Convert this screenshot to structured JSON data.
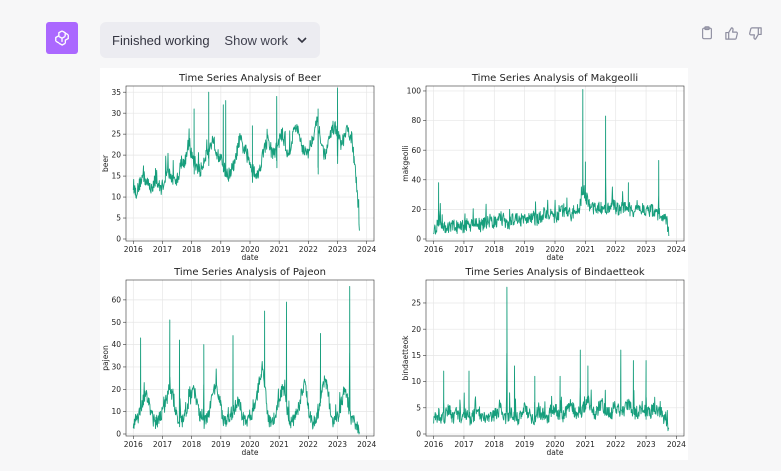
{
  "status": {
    "label": "Finished working",
    "toggle_label": "Show work"
  },
  "icons": {
    "avatar": "openai-logo-icon",
    "copy": "clipboard-icon",
    "thumbs_up": "thumbs-up-icon",
    "thumbs_down": "thumbs-down-icon",
    "chevron": "chevron-down-icon"
  },
  "colors": {
    "line": "#169e7c",
    "avatar_bg": "#ab68ff",
    "panel_bg": "#ececf1"
  },
  "chart_data": [
    {
      "type": "line",
      "title": "Time Series Analysis of Beer",
      "xlabel": "date",
      "ylabel": "beer",
      "xticks": [
        "2016",
        "2017",
        "2018",
        "2019",
        "2020",
        "2021",
        "2022",
        "2023",
        "2024"
      ],
      "yticks": [
        0,
        5,
        10,
        15,
        20,
        25,
        30,
        35
      ],
      "ylim": [
        0,
        36
      ],
      "grid": true,
      "x_start": "2016-01",
      "x_end": "2023-10",
      "approx_monthly": [
        13,
        11,
        12,
        14,
        15,
        14,
        13,
        12,
        13,
        14,
        13,
        12,
        13,
        15,
        16,
        15,
        14,
        13,
        15,
        17,
        18,
        19,
        22,
        21,
        19,
        18,
        17,
        16,
        18,
        20,
        21,
        22,
        24,
        22,
        20,
        19,
        18,
        16,
        15,
        16,
        17,
        18,
        22,
        24,
        22,
        21,
        19,
        18,
        17,
        16,
        15,
        17,
        20,
        22,
        23,
        22,
        20,
        21,
        22,
        24,
        25,
        23,
        20,
        21,
        24,
        27,
        26,
        24,
        22,
        21,
        20,
        22,
        24,
        26,
        28,
        25,
        22,
        20,
        21,
        24,
        26,
        27,
        25,
        24,
        22,
        24,
        26,
        25,
        24,
        18,
        12,
        2
      ],
      "spikes": [
        [
          "2018-02",
          31
        ],
        [
          "2018-08",
          35
        ],
        [
          "2019-02",
          32
        ],
        [
          "2019-03",
          33
        ],
        [
          "2020-02",
          27
        ],
        [
          "2020-12",
          34
        ],
        [
          "2022-05",
          31
        ],
        [
          "2023-01",
          36
        ]
      ]
    },
    {
      "type": "line",
      "title": "Time Series Analysis of Makgeolli",
      "xlabel": "date",
      "ylabel": "makgeolli",
      "xticks": [
        "2016",
        "2017",
        "2018",
        "2019",
        "2020",
        "2021",
        "2022",
        "2023",
        "2024"
      ],
      "yticks": [
        0,
        20,
        40,
        60,
        80,
        100
      ],
      "ylim": [
        0,
        102
      ],
      "grid": true,
      "x_start": "2016-01",
      "x_end": "2023-10",
      "approx_monthly": [
        7,
        8,
        12,
        10,
        9,
        8,
        7,
        8,
        9,
        8,
        7,
        8,
        9,
        10,
        9,
        11,
        12,
        10,
        9,
        10,
        11,
        12,
        13,
        12,
        11,
        12,
        14,
        13,
        12,
        11,
        12,
        13,
        15,
        14,
        13,
        12,
        14,
        16,
        15,
        14,
        13,
        15,
        16,
        17,
        18,
        16,
        15,
        14,
        16,
        18,
        19,
        20,
        18,
        17,
        16,
        18,
        20,
        24,
        30,
        28,
        24,
        22,
        20,
        21,
        22,
        20,
        19,
        20,
        22,
        24,
        22,
        21,
        20,
        19,
        21,
        22,
        20,
        19,
        20,
        22,
        21,
        20,
        19,
        18,
        19,
        20,
        18,
        17,
        16,
        15,
        14,
        2
      ],
      "spikes": [
        [
          "2016-03",
          38
        ],
        [
          "2020-12",
          101
        ],
        [
          "2021-01",
          52
        ],
        [
          "2021-09",
          83
        ],
        [
          "2022-06",
          38
        ],
        [
          "2023-06",
          53
        ]
      ]
    },
    {
      "type": "line",
      "title": "Time Series Analysis of Pajeon",
      "xlabel": "date",
      "ylabel": "pajeon",
      "xticks": [
        "2016",
        "2017",
        "2018",
        "2019",
        "2020",
        "2021",
        "2022",
        "2023",
        "2024"
      ],
      "yticks": [
        0,
        10,
        20,
        30,
        40,
        50,
        60
      ],
      "ylim": [
        0,
        68
      ],
      "grid": true,
      "x_start": "2016-01",
      "x_end": "2023-10",
      "approx_monthly": [
        5,
        6,
        8,
        12,
        15,
        18,
        16,
        10,
        6,
        5,
        6,
        8,
        10,
        14,
        18,
        20,
        17,
        10,
        6,
        5,
        6,
        9,
        12,
        16,
        20,
        18,
        12,
        6,
        5,
        6,
        9,
        12,
        17,
        22,
        20,
        14,
        6,
        5,
        6,
        8,
        10,
        12,
        15,
        12,
        8,
        5,
        6,
        7,
        9,
        12,
        18,
        26,
        30,
        22,
        10,
        5,
        6,
        8,
        12,
        16,
        20,
        18,
        10,
        6,
        5,
        7,
        10,
        14,
        20,
        22,
        16,
        8,
        5,
        6,
        8,
        12,
        18,
        24,
        20,
        12,
        6,
        5,
        7,
        10,
        15,
        20,
        16,
        10,
        6,
        5,
        4,
        1
      ],
      "spikes": [
        [
          "2016-04",
          43
        ],
        [
          "2017-04",
          51
        ],
        [
          "2017-08",
          42
        ],
        [
          "2018-06",
          40
        ],
        [
          "2019-06",
          44
        ],
        [
          "2020-07",
          55
        ],
        [
          "2021-04",
          59
        ],
        [
          "2022-06",
          45
        ],
        [
          "2023-06",
          66
        ]
      ]
    },
    {
      "type": "line",
      "title": "Time Series Analysis of Bindaetteok",
      "xlabel": "date",
      "ylabel": "bindaetteok",
      "xticks": [
        "2016",
        "2017",
        "2018",
        "2019",
        "2020",
        "2021",
        "2022",
        "2023",
        "2024"
      ],
      "yticks": [
        0,
        5,
        10,
        15,
        20,
        25
      ],
      "ylim": [
        0,
        29
      ],
      "grid": true,
      "x_start": "2016-01",
      "x_end": "2023-10",
      "approx_monthly": [
        3,
        3,
        4,
        3,
        3,
        4,
        5,
        3,
        3,
        4,
        3,
        3,
        4,
        4,
        3,
        3,
        4,
        5,
        4,
        3,
        3,
        4,
        3,
        3,
        4,
        4,
        5,
        4,
        3,
        3,
        4,
        4,
        3,
        3,
        4,
        5,
        4,
        4,
        3,
        3,
        4,
        4,
        4,
        3,
        3,
        4,
        5,
        5,
        4,
        4,
        3,
        4,
        5,
        6,
        5,
        4,
        4,
        4,
        5,
        6,
        6,
        5,
        4,
        4,
        5,
        6,
        5,
        4,
        4,
        4,
        5,
        5,
        4,
        4,
        5,
        6,
        5,
        4,
        4,
        4,
        5,
        5,
        4,
        4,
        4,
        5,
        5,
        4,
        4,
        3,
        3,
        1
      ],
      "spikes": [
        [
          "2016-05",
          12
        ],
        [
          "2017-03",
          12
        ],
        [
          "2018-06",
          28
        ],
        [
          "2018-09",
          13
        ],
        [
          "2019-05",
          11
        ],
        [
          "2020-03",
          11
        ],
        [
          "2020-11",
          16
        ],
        [
          "2021-02",
          13
        ],
        [
          "2022-03",
          16
        ],
        [
          "2022-08",
          14
        ],
        [
          "2023-01",
          14
        ]
      ]
    }
  ]
}
